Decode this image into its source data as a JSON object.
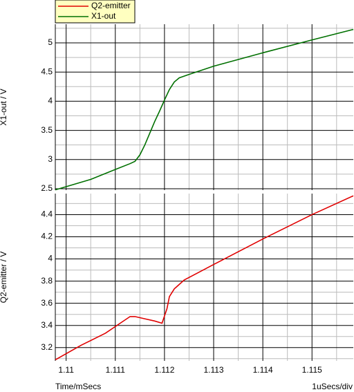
{
  "chart_data": [
    {
      "type": "line",
      "y_label": "X1-out / V",
      "x": [
        1.10978,
        1.1105,
        1.111,
        1.1113,
        1.1114,
        1.1115,
        1.1116,
        1.1117,
        1.1118,
        1.1119,
        1.112,
        1.1121,
        1.1122,
        1.1123,
        1.1125,
        1.113,
        1.114,
        1.115,
        1.11584
      ],
      "series": [
        {
          "name": "X1-out",
          "color": "#007000",
          "values": [
            2.48,
            2.66,
            2.83,
            2.93,
            2.97,
            3.08,
            3.25,
            3.45,
            3.65,
            3.83,
            4.02,
            4.2,
            4.33,
            4.4,
            4.46,
            4.6,
            4.83,
            5.05,
            5.23
          ]
        }
      ],
      "xlim": [
        1.10978,
        1.11584
      ],
      "xticks": [
        1.11,
        1.111,
        1.112,
        1.113,
        1.114,
        1.115
      ],
      "xminorticks": [
        1.1105,
        1.1115,
        1.1125,
        1.1135,
        1.1145,
        1.1155
      ],
      "ylim": [
        2.476,
        5.32
      ],
      "yticks": [
        2.5,
        3,
        3.5,
        4,
        4.5,
        5
      ],
      "yminorticks": [
        2.75,
        3.25,
        3.75,
        4.25,
        4.75,
        5.25
      ],
      "grid": true
    },
    {
      "type": "line",
      "y_label": "Q2-emitter / V",
      "x_label": "Time/mSecs",
      "x_scale_note": "1uSecs/div",
      "x": [
        1.10978,
        1.1103,
        1.1108,
        1.1111,
        1.1113,
        1.1114,
        1.1116,
        1.1118,
        1.11195,
        1.11205,
        1.1121,
        1.1122,
        1.1124,
        1.1127,
        1.113,
        1.114,
        1.115,
        1.11584
      ],
      "series": [
        {
          "name": "Q2-emitter",
          "color": "#e00000",
          "values": [
            3.09,
            3.22,
            3.33,
            3.42,
            3.48,
            3.48,
            3.46,
            3.44,
            3.42,
            3.55,
            3.66,
            3.73,
            3.81,
            3.88,
            3.95,
            4.18,
            4.4,
            4.57
          ]
        }
      ],
      "xlim": [
        1.10978,
        1.11584
      ],
      "xticks": [
        1.11,
        1.111,
        1.112,
        1.113,
        1.114,
        1.115
      ],
      "xminorticks": [
        1.1105,
        1.1115,
        1.1125,
        1.1135,
        1.1145,
        1.1155
      ],
      "ylim": [
        3.08,
        4.59
      ],
      "yticks": [
        3.2,
        3.4,
        3.6,
        3.8,
        4,
        4.2,
        4.4
      ],
      "yminorticks": [
        3.1,
        3.3,
        3.5,
        3.7,
        3.9,
        4.1,
        4.3,
        4.5
      ],
      "grid": true
    }
  ]
}
